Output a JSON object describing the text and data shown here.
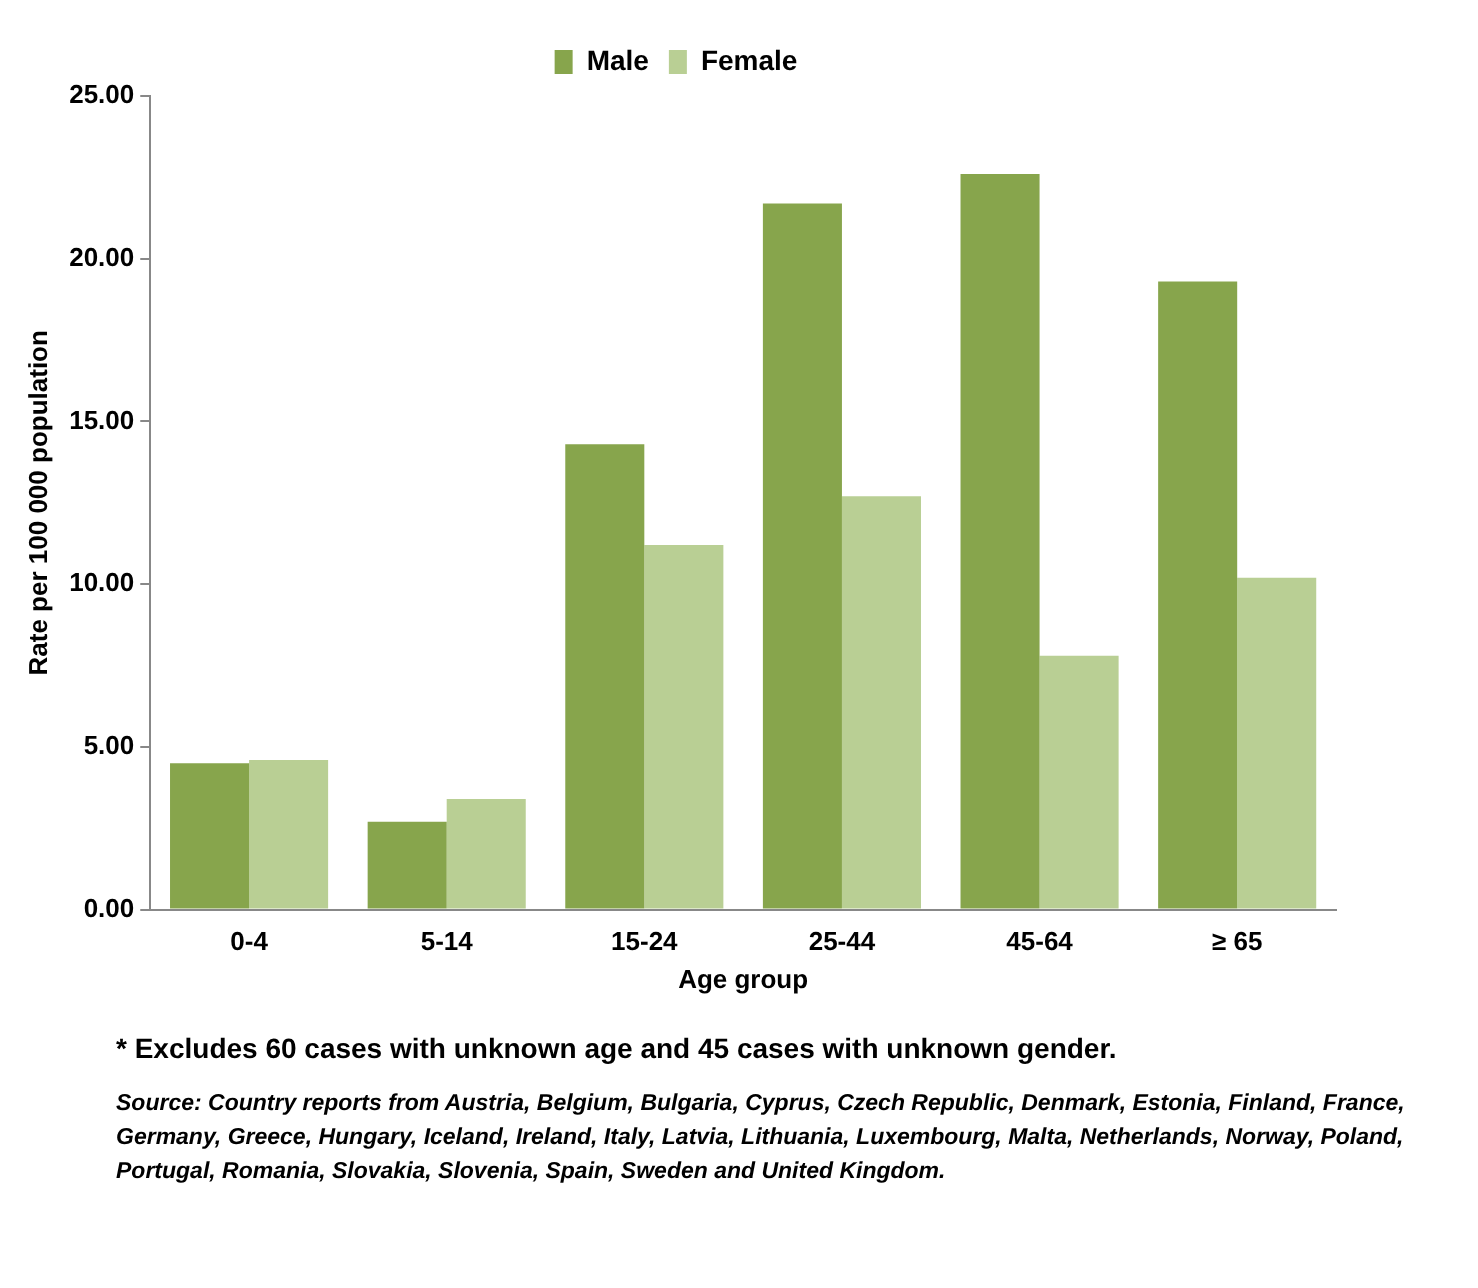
{
  "chart_data": {
    "type": "bar",
    "xlabel": "Age group",
    "ylabel": "Rate per 100 000 population",
    "categories": [
      "0-4",
      "5-14",
      "15-24",
      "25-44",
      "45-64",
      "≥ 65"
    ],
    "series": [
      {
        "name": "Male",
        "color": "#87a54c",
        "values": [
          4.5,
          2.7,
          14.3,
          21.7,
          22.6,
          19.3
        ]
      },
      {
        "name": "Female",
        "color": "#b9cf94",
        "values": [
          4.6,
          3.4,
          11.2,
          12.7,
          7.8,
          10.2
        ]
      }
    ],
    "ylim": [
      0,
      25
    ],
    "yticks": [
      {
        "value": 0,
        "label": "0.00"
      },
      {
        "value": 5,
        "label": "5.00"
      },
      {
        "value": 10,
        "label": "10.00"
      },
      {
        "value": 15,
        "label": "15.00"
      },
      {
        "value": 20,
        "label": "20.00"
      },
      {
        "value": 25,
        "label": "25.00"
      }
    ],
    "grid": false,
    "legend": "top",
    "annotations": [
      "* Excludes 60 cases with unknown age and 45 cases with unknown gender.",
      "Source: Country reports from Austria, Belgium, Bulgaria, Cyprus, Czech Republic, Denmark, Estonia, Finland, France, Germany, Greece, Hungary, Iceland, Ireland, Italy, Latvia, Lithuania, Luxembourg, Malta, Netherlands, Norway, Poland, Portugal, Romania, Slovakia, Slovenia, Spain, Sweden and United Kingdom."
    ]
  }
}
